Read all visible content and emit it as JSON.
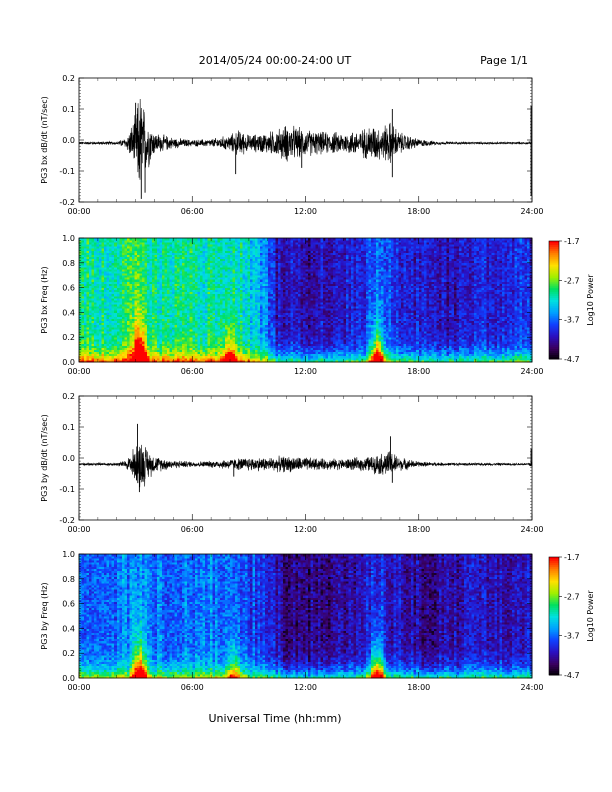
{
  "header": {
    "title": "2014/05/24  00:00-24:00 UT",
    "page": "Page 1/1"
  },
  "x_axis_title": "Universal Time (hh:mm)",
  "colors": {
    "trace": "#000000",
    "colorbar": [
      "#000000",
      "#3a0060",
      "#2a10c0",
      "#1040ff",
      "#00a0ff",
      "#00e0e0",
      "#00e060",
      "#a0f000",
      "#ffe000",
      "#ff8000",
      "#ff0000"
    ]
  },
  "chart_data": [
    {
      "type": "line",
      "id": "bx-dbdt",
      "ylabel": "PG3 bx dB/dt (nT/sec)",
      "ylim": [
        -0.2,
        0.2
      ],
      "yticks": [
        "0.2",
        "0.1",
        "0.0",
        "-0.1",
        "-0.2"
      ],
      "xlim": [
        0,
        24
      ],
      "xticks": [
        "00:00",
        "06:00",
        "12:00",
        "18:00",
        "24:00"
      ],
      "baseline": -0.01,
      "envelope": {
        "hours": [
          0,
          2,
          2.5,
          3.0,
          3.2,
          3.5,
          4,
          5,
          6,
          7,
          8,
          8.5,
          9,
          10,
          10.5,
          11,
          11.5,
          12,
          13,
          14,
          15,
          15.5,
          16,
          16.5,
          17,
          18,
          19,
          20,
          23.8,
          24
        ],
        "amp": [
          0.005,
          0.006,
          0.02,
          0.1,
          0.2,
          0.12,
          0.04,
          0.02,
          0.012,
          0.015,
          0.03,
          0.05,
          0.03,
          0.04,
          0.05,
          0.07,
          0.06,
          0.05,
          0.04,
          0.04,
          0.05,
          0.07,
          0.06,
          0.08,
          0.04,
          0.015,
          0.006,
          0.004,
          0.004,
          0.004
        ]
      },
      "spikes": [
        [
          3.0,
          0.12
        ],
        [
          3.3,
          -0.19
        ],
        [
          3.5,
          -0.17
        ],
        [
          8.3,
          -0.11
        ],
        [
          11.8,
          -0.09
        ],
        [
          16.6,
          0.1
        ],
        [
          16.6,
          -0.12
        ],
        [
          23.95,
          0.11
        ],
        [
          23.95,
          -0.18
        ]
      ]
    },
    {
      "type": "heatmap",
      "id": "bx-freq",
      "ylabel": "PG3 bx Freq (Hz)",
      "ylim": [
        0,
        1.0
      ],
      "yticks": [
        "1.0",
        "0.8",
        "0.6",
        "0.4",
        "0.2",
        "0.0"
      ],
      "xlim": [
        0,
        24
      ],
      "xticks": [
        "00:00",
        "06:00",
        "12:00",
        "18:00",
        "24:00"
      ],
      "colorbar_label": "Log10 Power",
      "colorbar_ticks": [
        "-1.7",
        "-2.7",
        "-3.7",
        "-4.7"
      ],
      "zlim": [
        -4.7,
        -1.7
      ],
      "activity": {
        "hours": [
          0,
          2,
          3,
          4,
          6,
          8,
          9,
          10,
          10.5,
          12,
          14,
          15,
          15.8,
          17,
          18,
          20,
          22,
          24
        ],
        "level": [
          0.55,
          0.55,
          0.6,
          0.55,
          0.55,
          0.55,
          0.5,
          0.35,
          0.2,
          0.18,
          0.2,
          0.25,
          0.3,
          0.25,
          0.2,
          0.2,
          0.25,
          0.25
        ]
      },
      "hotspots": [
        [
          3.2,
          0.9
        ],
        [
          15.8,
          0.85
        ],
        [
          8.0,
          0.5
        ]
      ]
    },
    {
      "type": "line",
      "id": "by-dbdt",
      "ylabel": "PG3 by dB/dt (nT/sec)",
      "ylim": [
        -0.2,
        0.2
      ],
      "yticks": [
        "0.2",
        "0.1",
        "0.0",
        "-0.1",
        "-0.2"
      ],
      "xlim": [
        0,
        24
      ],
      "xticks": [
        "00:00",
        "06:00",
        "12:00",
        "18:00",
        "24:00"
      ],
      "baseline": -0.02,
      "envelope": {
        "hours": [
          0,
          2,
          2.5,
          3.0,
          3.3,
          3.6,
          4,
          5,
          6,
          7,
          8,
          9,
          10,
          11,
          12,
          13,
          14,
          15,
          15.5,
          16,
          16.5,
          17,
          18,
          19,
          20,
          23.8,
          24
        ],
        "amp": [
          0.005,
          0.006,
          0.015,
          0.07,
          0.1,
          0.06,
          0.03,
          0.015,
          0.01,
          0.012,
          0.02,
          0.025,
          0.025,
          0.03,
          0.025,
          0.02,
          0.02,
          0.025,
          0.03,
          0.04,
          0.05,
          0.025,
          0.01,
          0.006,
          0.005,
          0.004,
          0.02
        ]
      },
      "spikes": [
        [
          3.1,
          0.11
        ],
        [
          3.2,
          -0.11
        ],
        [
          16.5,
          0.07
        ],
        [
          16.6,
          -0.08
        ],
        [
          8.2,
          -0.06
        ],
        [
          23.95,
          0.03
        ]
      ]
    },
    {
      "type": "heatmap",
      "id": "by-freq",
      "ylabel": "PG3 by Freq (Hz)",
      "ylim": [
        0,
        1.0
      ],
      "yticks": [
        "1.0",
        "0.8",
        "0.6",
        "0.4",
        "0.2",
        "0.0"
      ],
      "xlim": [
        0,
        24
      ],
      "xticks": [
        "00:00",
        "06:00",
        "12:00",
        "18:00",
        "24:00"
      ],
      "colorbar_label": "Log10 Power",
      "colorbar_ticks": [
        "-1.7",
        "-2.7",
        "-3.7",
        "-4.7"
      ],
      "zlim": [
        -4.7,
        -1.7
      ],
      "activity": {
        "hours": [
          0,
          2,
          3,
          4,
          6,
          8,
          9,
          10,
          11,
          12,
          14,
          15,
          15.8,
          17,
          18,
          20,
          22,
          24
        ],
        "level": [
          0.35,
          0.35,
          0.4,
          0.35,
          0.35,
          0.35,
          0.3,
          0.25,
          0.15,
          0.12,
          0.15,
          0.2,
          0.25,
          0.2,
          0.15,
          0.18,
          0.2,
          0.2
        ]
      },
      "hotspots": [
        [
          3.2,
          0.85
        ],
        [
          15.8,
          0.8
        ],
        [
          8.2,
          0.45
        ]
      ]
    }
  ]
}
